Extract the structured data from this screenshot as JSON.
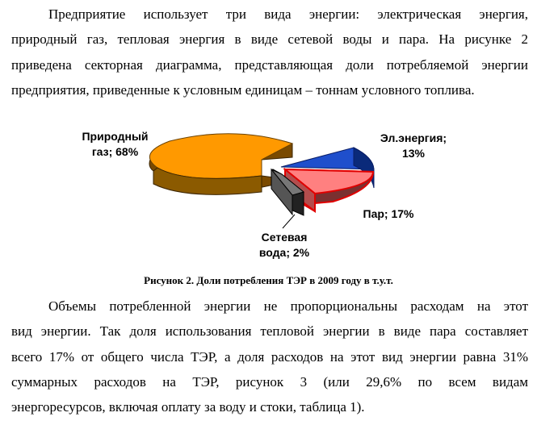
{
  "paragraph1": {
    "lines": [
      "Предприятие использует три вида энергии: электрическая энергия,",
      "природный газ, тепловая энергия в виде сетевой воды и пара. На рисунке 2",
      "приведена секторная диаграмма, представляющая доли потребляемой энергии",
      "предприятия, приведенные к условным единицам – тоннам условного топлива."
    ]
  },
  "chart_data": {
    "type": "pie",
    "title": "",
    "slices": [
      {
        "label": "Природный газ",
        "value": 68,
        "color": "#FF9900"
      },
      {
        "label": "Эл.энергия",
        "value": 13,
        "color": "#1F4FCC"
      },
      {
        "label": "Пар",
        "value": 17,
        "color": "#FF8080"
      },
      {
        "label": "Сетевая вода",
        "value": 2,
        "color": "#555555"
      }
    ],
    "labels": {
      "gas_line1": "Природный",
      "gas_line2": "газ; 68%",
      "el_line1": "Эл.энергия;",
      "el_line2": "13%",
      "steam": "Пар; 17%",
      "water_line1": "Сетевая",
      "water_line2": "вода; 2%"
    }
  },
  "caption": "Рисунок 2. Доли потребления ТЭР в 2009 году в т.у.т.",
  "paragraph2": {
    "lines": [
      "Объемы потребленной энергии не пропорциональны расходам на этот",
      "вид энергии. Так доля использования тепловой энергии в виде пара составляет",
      "всего 17% от общего числа ТЭР, а доля расходов на этот вид энергии равна 31%",
      "суммарных расходов на ТЭР, рисунок 3 (или 29,6% по всем видам",
      "энергоресурсов, включая оплату за воду и стоки, таблица 1)."
    ]
  }
}
